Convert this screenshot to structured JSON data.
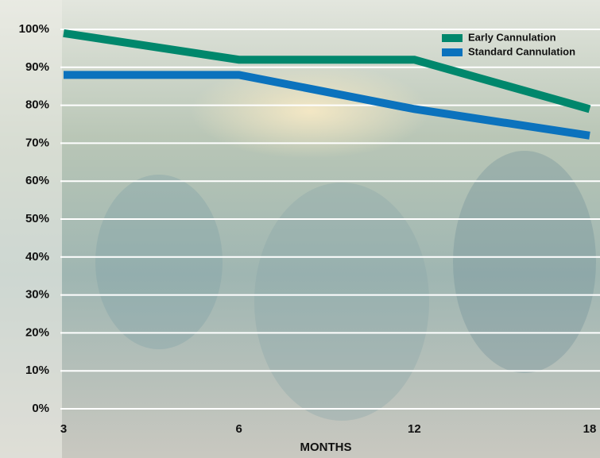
{
  "chart_data": {
    "type": "line",
    "categories": [
      "3",
      "6",
      "12",
      "18"
    ],
    "series": [
      {
        "name": "Early Cannulation",
        "color": "#00876c",
        "values": [
          99,
          92,
          92,
          79
        ]
      },
      {
        "name": "Standard Cannulation",
        "color": "#0b72bd",
        "values": [
          88,
          88,
          79,
          72
        ]
      }
    ],
    "xlabel": "MONTHS",
    "ylim": [
      0,
      100
    ],
    "yticks": [
      {
        "value": 0,
        "label": "0%"
      },
      {
        "value": 10,
        "label": "10%"
      },
      {
        "value": 20,
        "label": "20%"
      },
      {
        "value": 30,
        "label": "30%"
      },
      {
        "value": 40,
        "label": "40%"
      },
      {
        "value": 50,
        "label": "50%"
      },
      {
        "value": 60,
        "label": "60%"
      },
      {
        "value": 70,
        "label": "70%"
      },
      {
        "value": 80,
        "label": "80%"
      },
      {
        "value": 90,
        "label": "90%"
      },
      {
        "value": 100,
        "label": "100%"
      }
    ],
    "grid": true,
    "legend": "top-right"
  }
}
